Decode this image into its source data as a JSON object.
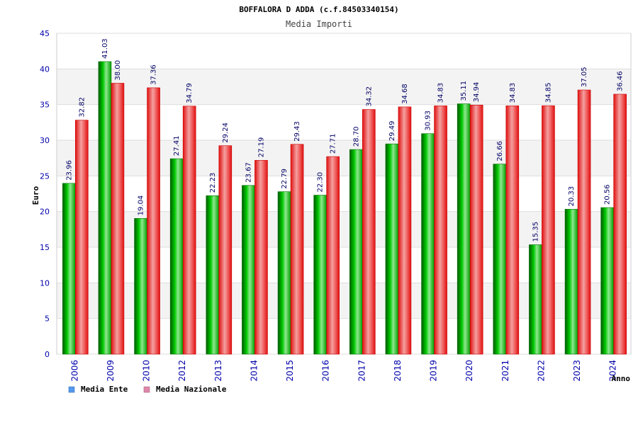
{
  "chart_data": {
    "type": "bar",
    "title": "BOFFALORA D ADDA (c.f.84503340154)",
    "subtitle": "Media Importi",
    "xlabel": "Anno",
    "ylabel": "Euro",
    "ylim": [
      0,
      45
    ],
    "yticks": [
      0,
      5,
      10,
      15,
      20,
      25,
      30,
      35,
      40,
      45
    ],
    "ytick_labels": [
      "0",
      "5",
      "10",
      "15",
      "20",
      "25",
      "30",
      "35",
      "40",
      "45"
    ],
    "categories": [
      "2006",
      "2009",
      "2010",
      "2012",
      "2013",
      "2014",
      "2015",
      "2016",
      "2017",
      "2018",
      "2019",
      "2020",
      "2021",
      "2022",
      "2023",
      "2024"
    ],
    "series": [
      {
        "name": "Media Ente",
        "color": "#00b400",
        "legend_color": "#5599ee",
        "values": [
          23.96,
          41.03,
          19.04,
          27.41,
          22.23,
          23.67,
          22.79,
          22.3,
          28.7,
          29.49,
          30.93,
          35.11,
          26.66,
          15.35,
          20.33,
          20.56
        ],
        "labels": [
          "23.96",
          "41.03",
          "19.04",
          "27.41",
          "22.23",
          "23.67",
          "22.79",
          "22.30",
          "28.70",
          "29.49",
          "30.93",
          "35.11",
          "26.66",
          "15.35",
          "20.33",
          "20.56"
        ]
      },
      {
        "name": "Media Nazionale",
        "color": "#ee2222",
        "legend_color": "#dd88aa",
        "values": [
          32.82,
          38.0,
          37.36,
          34.79,
          29.24,
          27.19,
          29.43,
          27.71,
          34.32,
          34.68,
          34.83,
          34.94,
          34.83,
          34.85,
          37.05,
          36.46
        ],
        "labels": [
          "32.82",
          "38.00",
          "37.36",
          "34.79",
          "29.24",
          "27.19",
          "29.43",
          "27.71",
          "34.32",
          "34.68",
          "34.83",
          "34.94",
          "34.83",
          "34.85",
          "37.05",
          "36.46"
        ]
      }
    ],
    "grid": true,
    "legend_position": "bottom-left"
  }
}
